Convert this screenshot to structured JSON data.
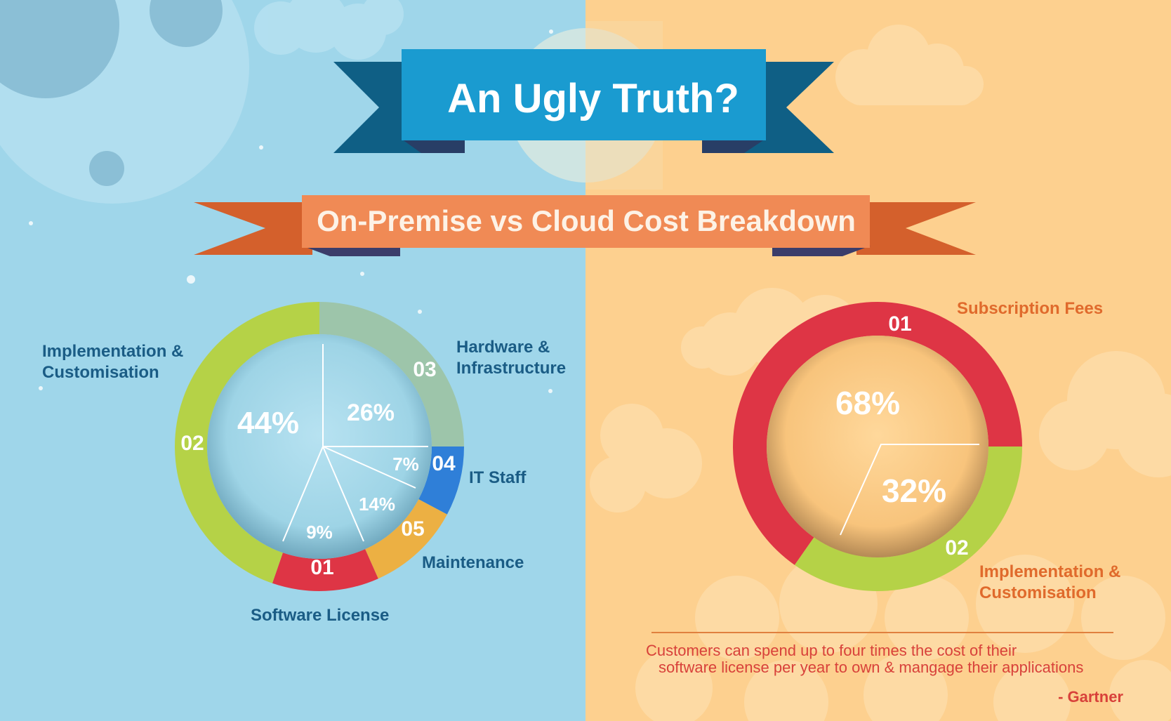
{
  "title": "An Ugly Truth?",
  "subtitle": "On-Premise vs Cloud Cost Breakdown",
  "colors": {
    "left_bg": "#9fd6ea",
    "right_bg": "#fdd08f",
    "title_banner": "#1a9bd0",
    "title_banner_dark": "#0f5f85",
    "subtitle_banner": "#f08a55",
    "subtitle_banner_dark": "#d4602c",
    "left_label_text": "#1a5c85",
    "right_label_text": "#e06a2c"
  },
  "chart_data": [
    {
      "type": "pie",
      "name": "On-Premise",
      "slices": [
        {
          "number": "01",
          "label": "Software License",
          "value": 9,
          "percent_label": "9%",
          "color": "#de3545"
        },
        {
          "number": "02",
          "label": "Implementation & Customisation",
          "value": 44,
          "percent_label": "44%",
          "color": "#b5d247"
        },
        {
          "number": "03",
          "label": "Hardware & Infrastructure",
          "value": 26,
          "percent_label": "26%",
          "color": "#9dc5aa"
        },
        {
          "number": "04",
          "label": "IT Staff",
          "value": 7,
          "percent_label": "7%",
          "color": "#2f7fd8"
        },
        {
          "number": "05",
          "label": "Maintenance",
          "value": 14,
          "percent_label": "14%",
          "color": "#ecb043"
        }
      ]
    },
    {
      "type": "pie",
      "name": "Cloud",
      "slices": [
        {
          "number": "01",
          "label": "Subscription Fees",
          "value": 68,
          "percent_label": "68%",
          "color": "#de3545"
        },
        {
          "number": "02",
          "label": "Implementation & Customisation",
          "value": 32,
          "percent_label": "32%",
          "color": "#b5d247"
        }
      ]
    }
  ],
  "quote": {
    "line1": "Customers can spend up to four times the cost of their",
    "line2": "software license per year to own & mangage their applications",
    "attribution": "- Gartner"
  }
}
